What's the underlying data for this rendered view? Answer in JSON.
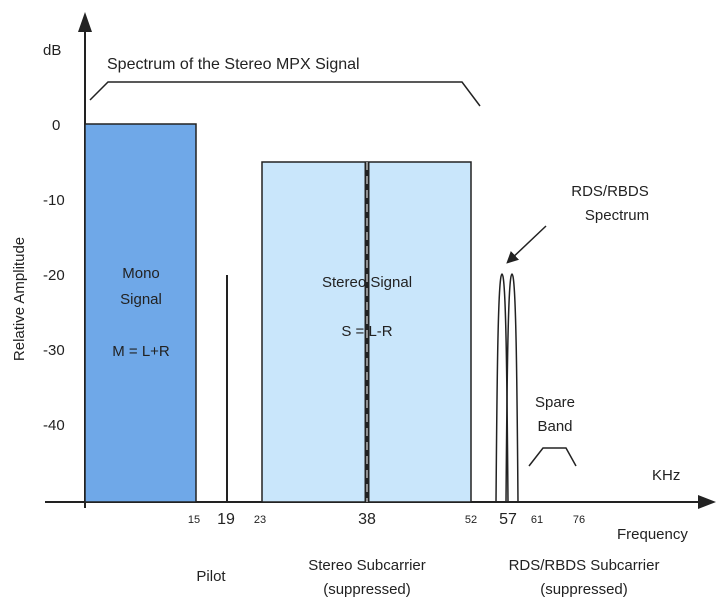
{
  "title": "Spectrum of the Stereo MPX Signal",
  "y_axis": {
    "unit": "dB",
    "label": "Relative Amplitude",
    "ticks": [
      "0",
      "-10",
      "-20",
      "-30",
      "-40"
    ]
  },
  "x_axis": {
    "unit": "KHz",
    "label": "Frequency",
    "ticks": [
      {
        "label": "15",
        "size": "sm"
      },
      {
        "label": "19",
        "size": "lg"
      },
      {
        "label": "23",
        "size": "sm"
      },
      {
        "label": "38",
        "size": "lg"
      },
      {
        "label": "52",
        "size": "sm"
      },
      {
        "label": "57",
        "size": "lg"
      },
      {
        "label": "61",
        "size": "sm"
      },
      {
        "label": "76",
        "size": "sm"
      }
    ]
  },
  "blocks": {
    "mono": {
      "line1": "Mono",
      "line2": "Signal",
      "formula": "M = L+R",
      "color": "#6fa8e8"
    },
    "stereo": {
      "line1": "Stereo Signal",
      "formula": "S = L-R",
      "color": "#c9e6fb"
    }
  },
  "annotations": {
    "rds_spectrum_line1": "RDS/RBDS",
    "rds_spectrum_line2": "Spectrum",
    "spare_line1": "Spare",
    "spare_line2": "Band"
  },
  "bottom_labels": {
    "pilot": "Pilot",
    "stereo_sub_line1": "Stereo Subcarrier",
    "stereo_sub_line2": "(suppressed)",
    "rds_sub_line1": "RDS/RBDS Subcarrier",
    "rds_sub_line2": "(suppressed)"
  }
}
